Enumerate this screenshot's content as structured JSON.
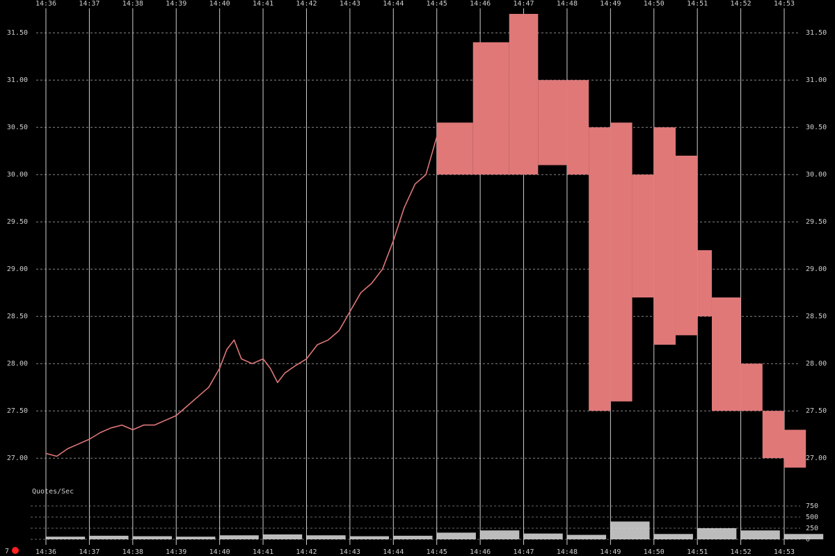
{
  "chart_data": [
    {
      "type": "line",
      "title": "",
      "xlabel": "",
      "ylabel": "",
      "ylim": [
        26.7,
        31.7
      ],
      "y_ticks": [
        "27.00",
        "27.50",
        "28.00",
        "28.50",
        "29.00",
        "29.50",
        "30.00",
        "30.50",
        "31.00",
        "31.50"
      ],
      "x_ticks": [
        "14:36",
        "14:37",
        "14:38",
        "14:39",
        "14:40",
        "14:41",
        "14:42",
        "14:43",
        "14:44",
        "14:45",
        "14:46",
        "14:47",
        "14:48",
        "14:49",
        "14:50",
        "14:51",
        "14:52",
        "14:53"
      ],
      "grid": true,
      "color": "#e07878",
      "series": [
        {
          "x": [
            "14:36:00",
            "14:36:15",
            "14:36:30",
            "14:36:45",
            "14:37:00",
            "14:37:15",
            "14:37:30",
            "14:37:45",
            "14:38:00",
            "14:38:15",
            "14:38:30",
            "14:38:45",
            "14:39:00",
            "14:39:15",
            "14:39:30",
            "14:39:45",
            "14:40:00",
            "14:40:10",
            "14:40:20",
            "14:40:30",
            "14:40:45",
            "14:41:00",
            "14:41:10",
            "14:41:20",
            "14:41:30",
            "14:41:45",
            "14:42:00",
            "14:42:15",
            "14:42:30",
            "14:42:45",
            "14:43:00",
            "14:43:15",
            "14:43:30",
            "14:43:45",
            "14:44:00",
            "14:44:15",
            "14:44:30",
            "14:44:45",
            "14:45:00"
          ],
          "values": [
            27.05,
            27.02,
            27.1,
            27.15,
            27.2,
            27.27,
            27.32,
            27.35,
            27.3,
            27.35,
            27.35,
            27.4,
            27.45,
            27.55,
            27.65,
            27.75,
            27.95,
            28.15,
            28.25,
            28.05,
            28.0,
            28.05,
            27.95,
            27.8,
            27.9,
            27.98,
            28.05,
            28.2,
            28.25,
            28.35,
            28.55,
            28.75,
            28.85,
            29.0,
            29.3,
            29.65,
            29.9,
            30.0,
            30.4
          ]
        }
      ],
      "bands": [
        {
          "x0": "14:45:00",
          "x1": "14:45:50",
          "low": 30.0,
          "high": 30.55
        },
        {
          "x0": "14:45:50",
          "x1": "14:46:40",
          "low": 30.0,
          "high": 31.4
        },
        {
          "x0": "14:46:40",
          "x1": "14:47:20",
          "low": 30.0,
          "high": 31.7
        },
        {
          "x0": "14:47:20",
          "x1": "14:48:00",
          "low": 30.1,
          "high": 31.0
        },
        {
          "x0": "14:48:00",
          "x1": "14:48:30",
          "low": 30.0,
          "high": 31.0
        },
        {
          "x0": "14:48:30",
          "x1": "14:49:00",
          "low": 27.5,
          "high": 30.5
        },
        {
          "x0": "14:49:00",
          "x1": "14:49:30",
          "low": 27.6,
          "high": 30.55
        },
        {
          "x0": "14:49:30",
          "x1": "14:50:00",
          "low": 28.7,
          "high": 30.0
        },
        {
          "x0": "14:50:00",
          "x1": "14:50:30",
          "low": 28.2,
          "high": 30.5
        },
        {
          "x0": "14:50:30",
          "x1": "14:51:00",
          "low": 28.3,
          "high": 30.2
        },
        {
          "x0": "14:51:00",
          "x1": "14:51:20",
          "low": 28.5,
          "high": 29.2
        },
        {
          "x0": "14:51:20",
          "x1": "14:52:00",
          "low": 27.5,
          "high": 28.7
        },
        {
          "x0": "14:52:00",
          "x1": "14:52:30",
          "low": 27.5,
          "high": 28.0
        },
        {
          "x0": "14:52:30",
          "x1": "14:53:00",
          "low": 27.0,
          "high": 27.5
        },
        {
          "x0": "14:53:00",
          "x1": "14:53:30",
          "low": 26.9,
          "high": 27.3
        }
      ]
    },
    {
      "type": "area",
      "title": "Quotes/Sec",
      "ylim": [
        0,
        1000
      ],
      "y_ticks": [
        "0",
        "250",
        "500",
        "750"
      ],
      "color": "#dddddd",
      "x": [
        "14:36",
        "14:37",
        "14:38",
        "14:39",
        "14:40",
        "14:41",
        "14:42",
        "14:43",
        "14:44",
        "14:45",
        "14:46",
        "14:47",
        "14:48",
        "14:49",
        "14:50",
        "14:51",
        "14:52",
        "14:53"
      ],
      "values": [
        60,
        80,
        70,
        60,
        90,
        110,
        90,
        70,
        80,
        150,
        200,
        130,
        100,
        400,
        120,
        250,
        200,
        120
      ]
    }
  ],
  "status": {
    "count_label": "7",
    "indicator_color": "#ff2020"
  }
}
